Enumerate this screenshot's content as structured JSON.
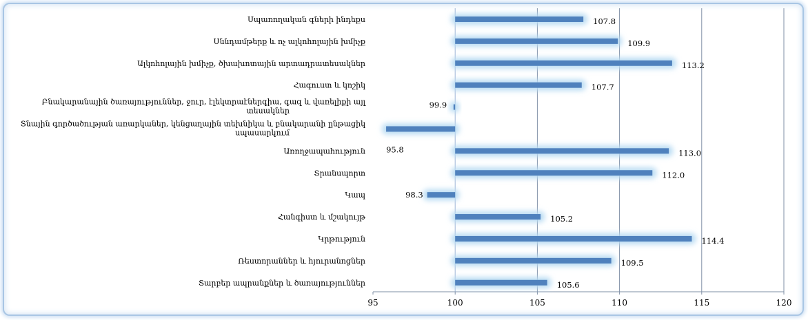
{
  "chart_data": {
    "type": "bar",
    "orientation": "horizontal",
    "title": "",
    "xlabel": "",
    "ylabel": "",
    "xlim": [
      95,
      120
    ],
    "x_ticks": [
      95,
      100,
      105,
      110,
      115,
      120
    ],
    "grid": "vertical",
    "bar_color": "#4f81bd",
    "glow_color": "#b9dcf3",
    "baseline": 100,
    "categories": [
      [
        "Սպառողական գների ինդեքս"
      ],
      [
        "Սննդամթերք և ոչ ալկոհոլային խմիչք"
      ],
      [
        "Ալկոհոլային խմիչք, ծխախոտային արտադրատեսակներ"
      ],
      [
        "Հագուստ և կոշիկ"
      ],
      [
        "Բնակարանային ծառայություններ, ջուր, էլեկտրաէներգիա, գազ և վառելիքի այլ",
        "տեսակներ"
      ],
      [
        "Տնային գործածության առարկաներ, կենցաղային տեխնիկա և բնակարանի ընթացիկ",
        "սպասարկում"
      ],
      [
        "Առողջապահություն"
      ],
      [
        "Տրանսպորտ"
      ],
      [
        "Կապ"
      ],
      [
        "Հանգիստ և մշակույթ"
      ],
      [
        "Կրթություն"
      ],
      [
        "Ռեստորաններ և հյուրանոցներ"
      ],
      [
        "Տարբեր ապրանքներ և ծառայություններ"
      ]
    ],
    "values": [
      107.8,
      109.9,
      113.2,
      107.7,
      99.9,
      95.8,
      113.0,
      112.0,
      98.3,
      105.2,
      114.4,
      109.5,
      105.6
    ],
    "value_labels": [
      "107.8",
      "109.9",
      "113.2",
      "107.7",
      "99.9",
      "95.8",
      "113.0",
      "112.0",
      "98.3",
      "105.2",
      "114.4",
      "109.5",
      "105.6"
    ]
  }
}
